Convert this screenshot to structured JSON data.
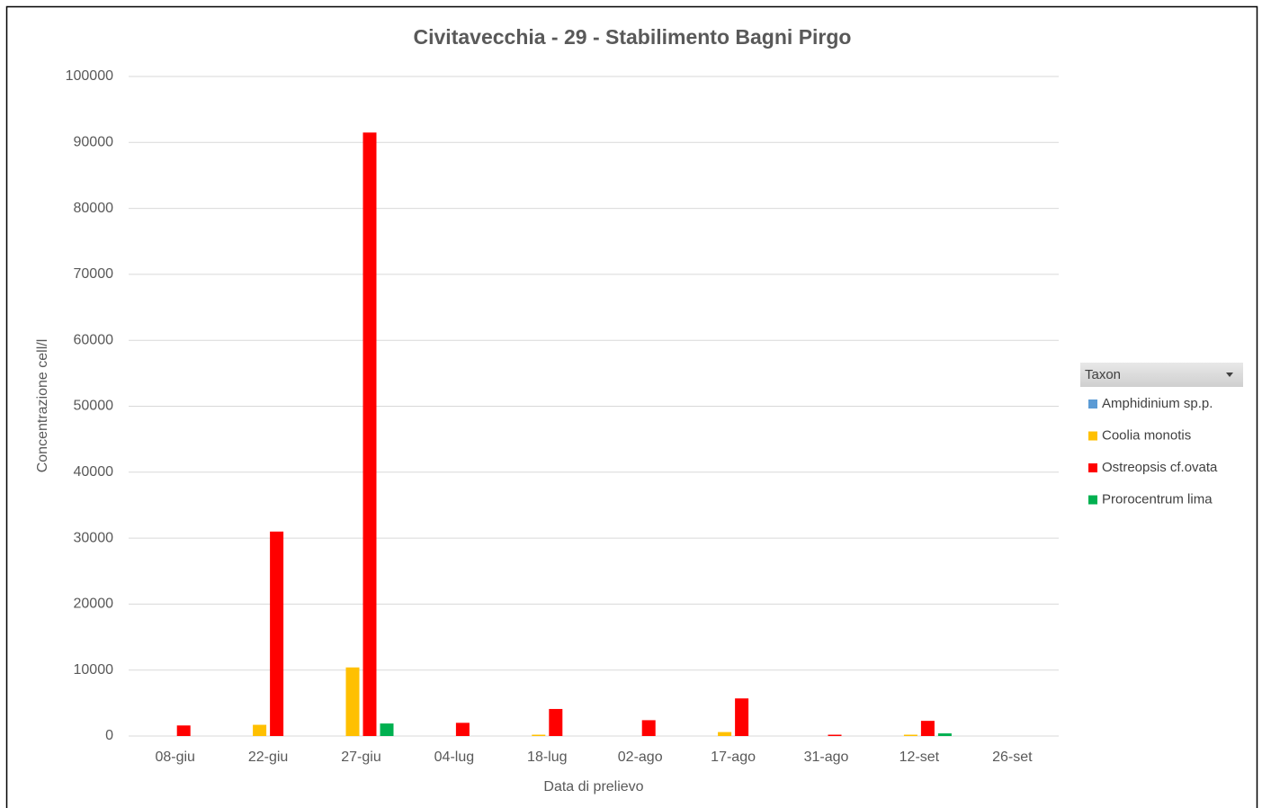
{
  "chart_data": {
    "type": "bar",
    "title": "Civitavecchia - 29 - Stabilimento Bagni Pirgo",
    "x_label": "Data di prelievo",
    "y_label": "Concentrazione cell/l",
    "legend_title": "Taxon",
    "categories": [
      "08-giu",
      "22-giu",
      "27-giu",
      "04-lug",
      "18-lug",
      "02-ago",
      "17-ago",
      "31-ago",
      "12-set",
      "26-set"
    ],
    "series": [
      {
        "name": "Amphidinium sp.p.",
        "color": "#5b9bd5",
        "values": [
          0,
          0,
          0,
          0,
          0,
          0,
          0,
          0,
          0,
          0
        ]
      },
      {
        "name": "Coolia monotis",
        "color": "#ffc000",
        "values": [
          0,
          1700,
          10400,
          0,
          200,
          0,
          600,
          0,
          200,
          0
        ]
      },
      {
        "name": "Ostreopsis cf.ovata",
        "color": "#ff0000",
        "values": [
          1600,
          31000,
          91500,
          2000,
          4100,
          2400,
          5700,
          200,
          2300,
          0
        ]
      },
      {
        "name": "Prorocentrum lima",
        "color": "#00b050",
        "values": [
          0,
          0,
          1900,
          0,
          0,
          0,
          0,
          0,
          400,
          0
        ]
      }
    ],
    "ylim": [
      0,
      100000
    ],
    "yticks": [
      0,
      10000,
      20000,
      30000,
      40000,
      50000,
      60000,
      70000,
      80000,
      90000,
      100000
    ],
    "grid": true,
    "legend_position": "right"
  }
}
